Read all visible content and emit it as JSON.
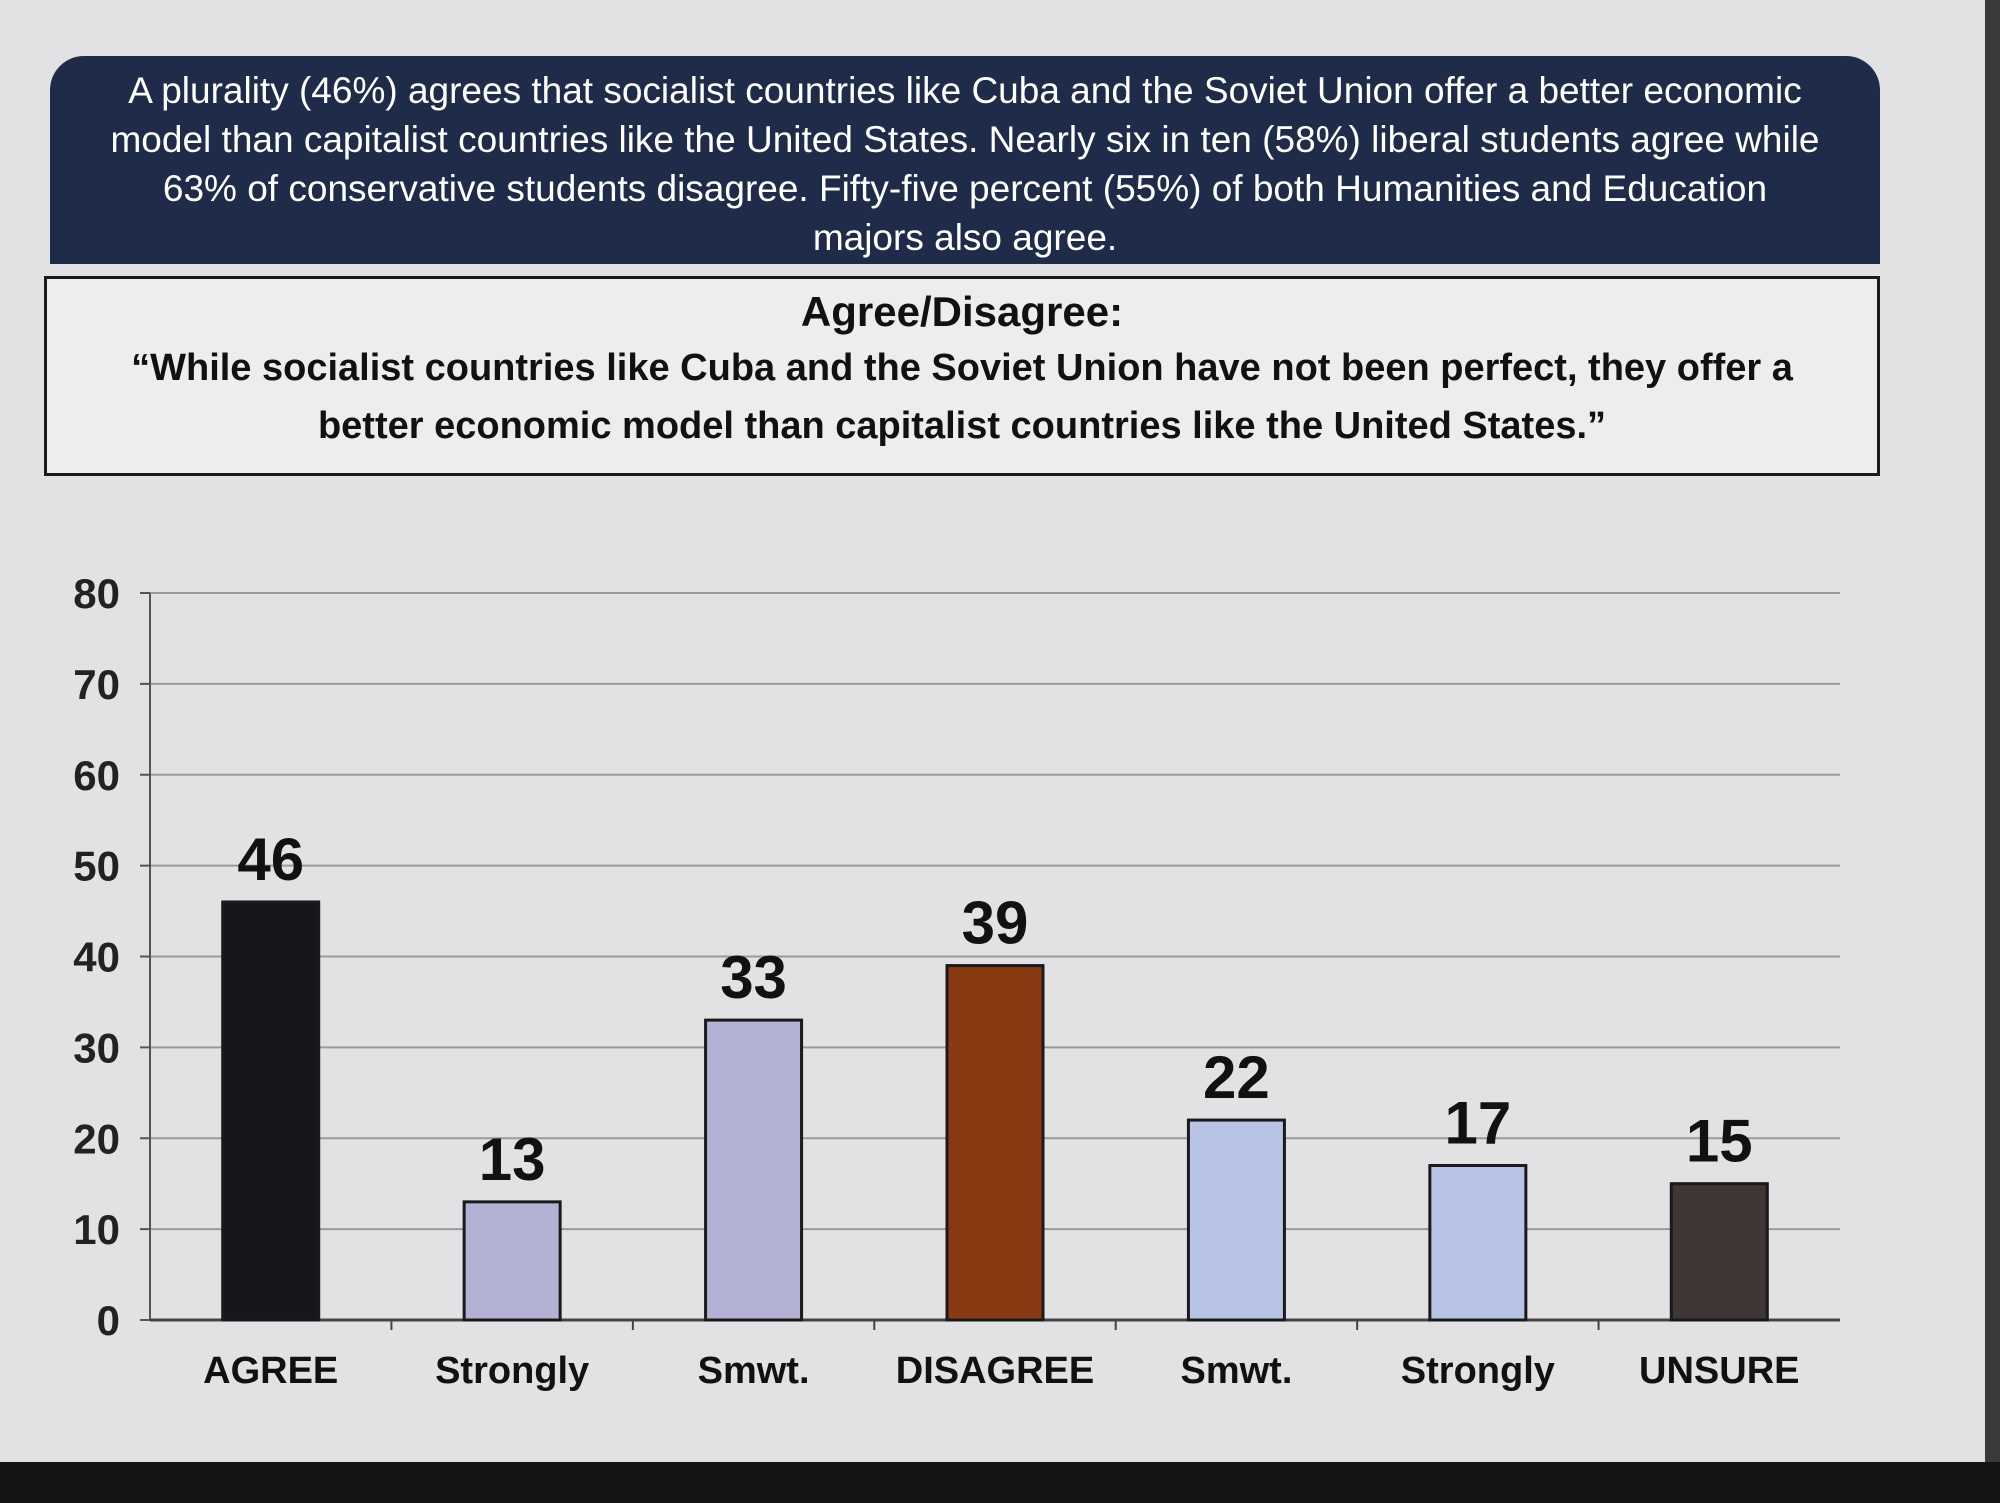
{
  "summary": {
    "text": "A plurality (46%) agrees that socialist countries like Cuba and the Soviet Union offer a better economic model than capitalist countries like the United States. Nearly six in ten (58%) liberal students agree while 63% of conservative students disagree. Fifty-five percent (55%) of both Humanities and Education majors also agree."
  },
  "question": {
    "heading": "Agree/Disagree:",
    "text": "“While socialist countries like Cuba and the Soviet Union have not been perfect, they offer a better economic model than capitalist countries like the United States.”"
  },
  "chart_data": {
    "type": "bar",
    "title": "",
    "xlabel": "",
    "ylabel": "",
    "categories": [
      "AGREE",
      "Strongly",
      "Smwt.",
      "DISAGREE",
      "Smwt.",
      "Strongly",
      "UNSURE"
    ],
    "values": [
      46,
      13,
      33,
      39,
      22,
      17,
      15
    ],
    "ylim": [
      0,
      80
    ],
    "yticks": [
      0,
      10,
      20,
      30,
      40,
      50,
      60,
      70,
      80
    ],
    "grid": true,
    "bar_colors": [
      "#16161c",
      "#b3b2d4",
      "#b3b2d4",
      "#8a3a12",
      "#b8c4e6",
      "#b8c4e6",
      "#3f3635"
    ]
  },
  "colors": {
    "banner": "#1e2c4a",
    "page": "#e2e2e4"
  }
}
